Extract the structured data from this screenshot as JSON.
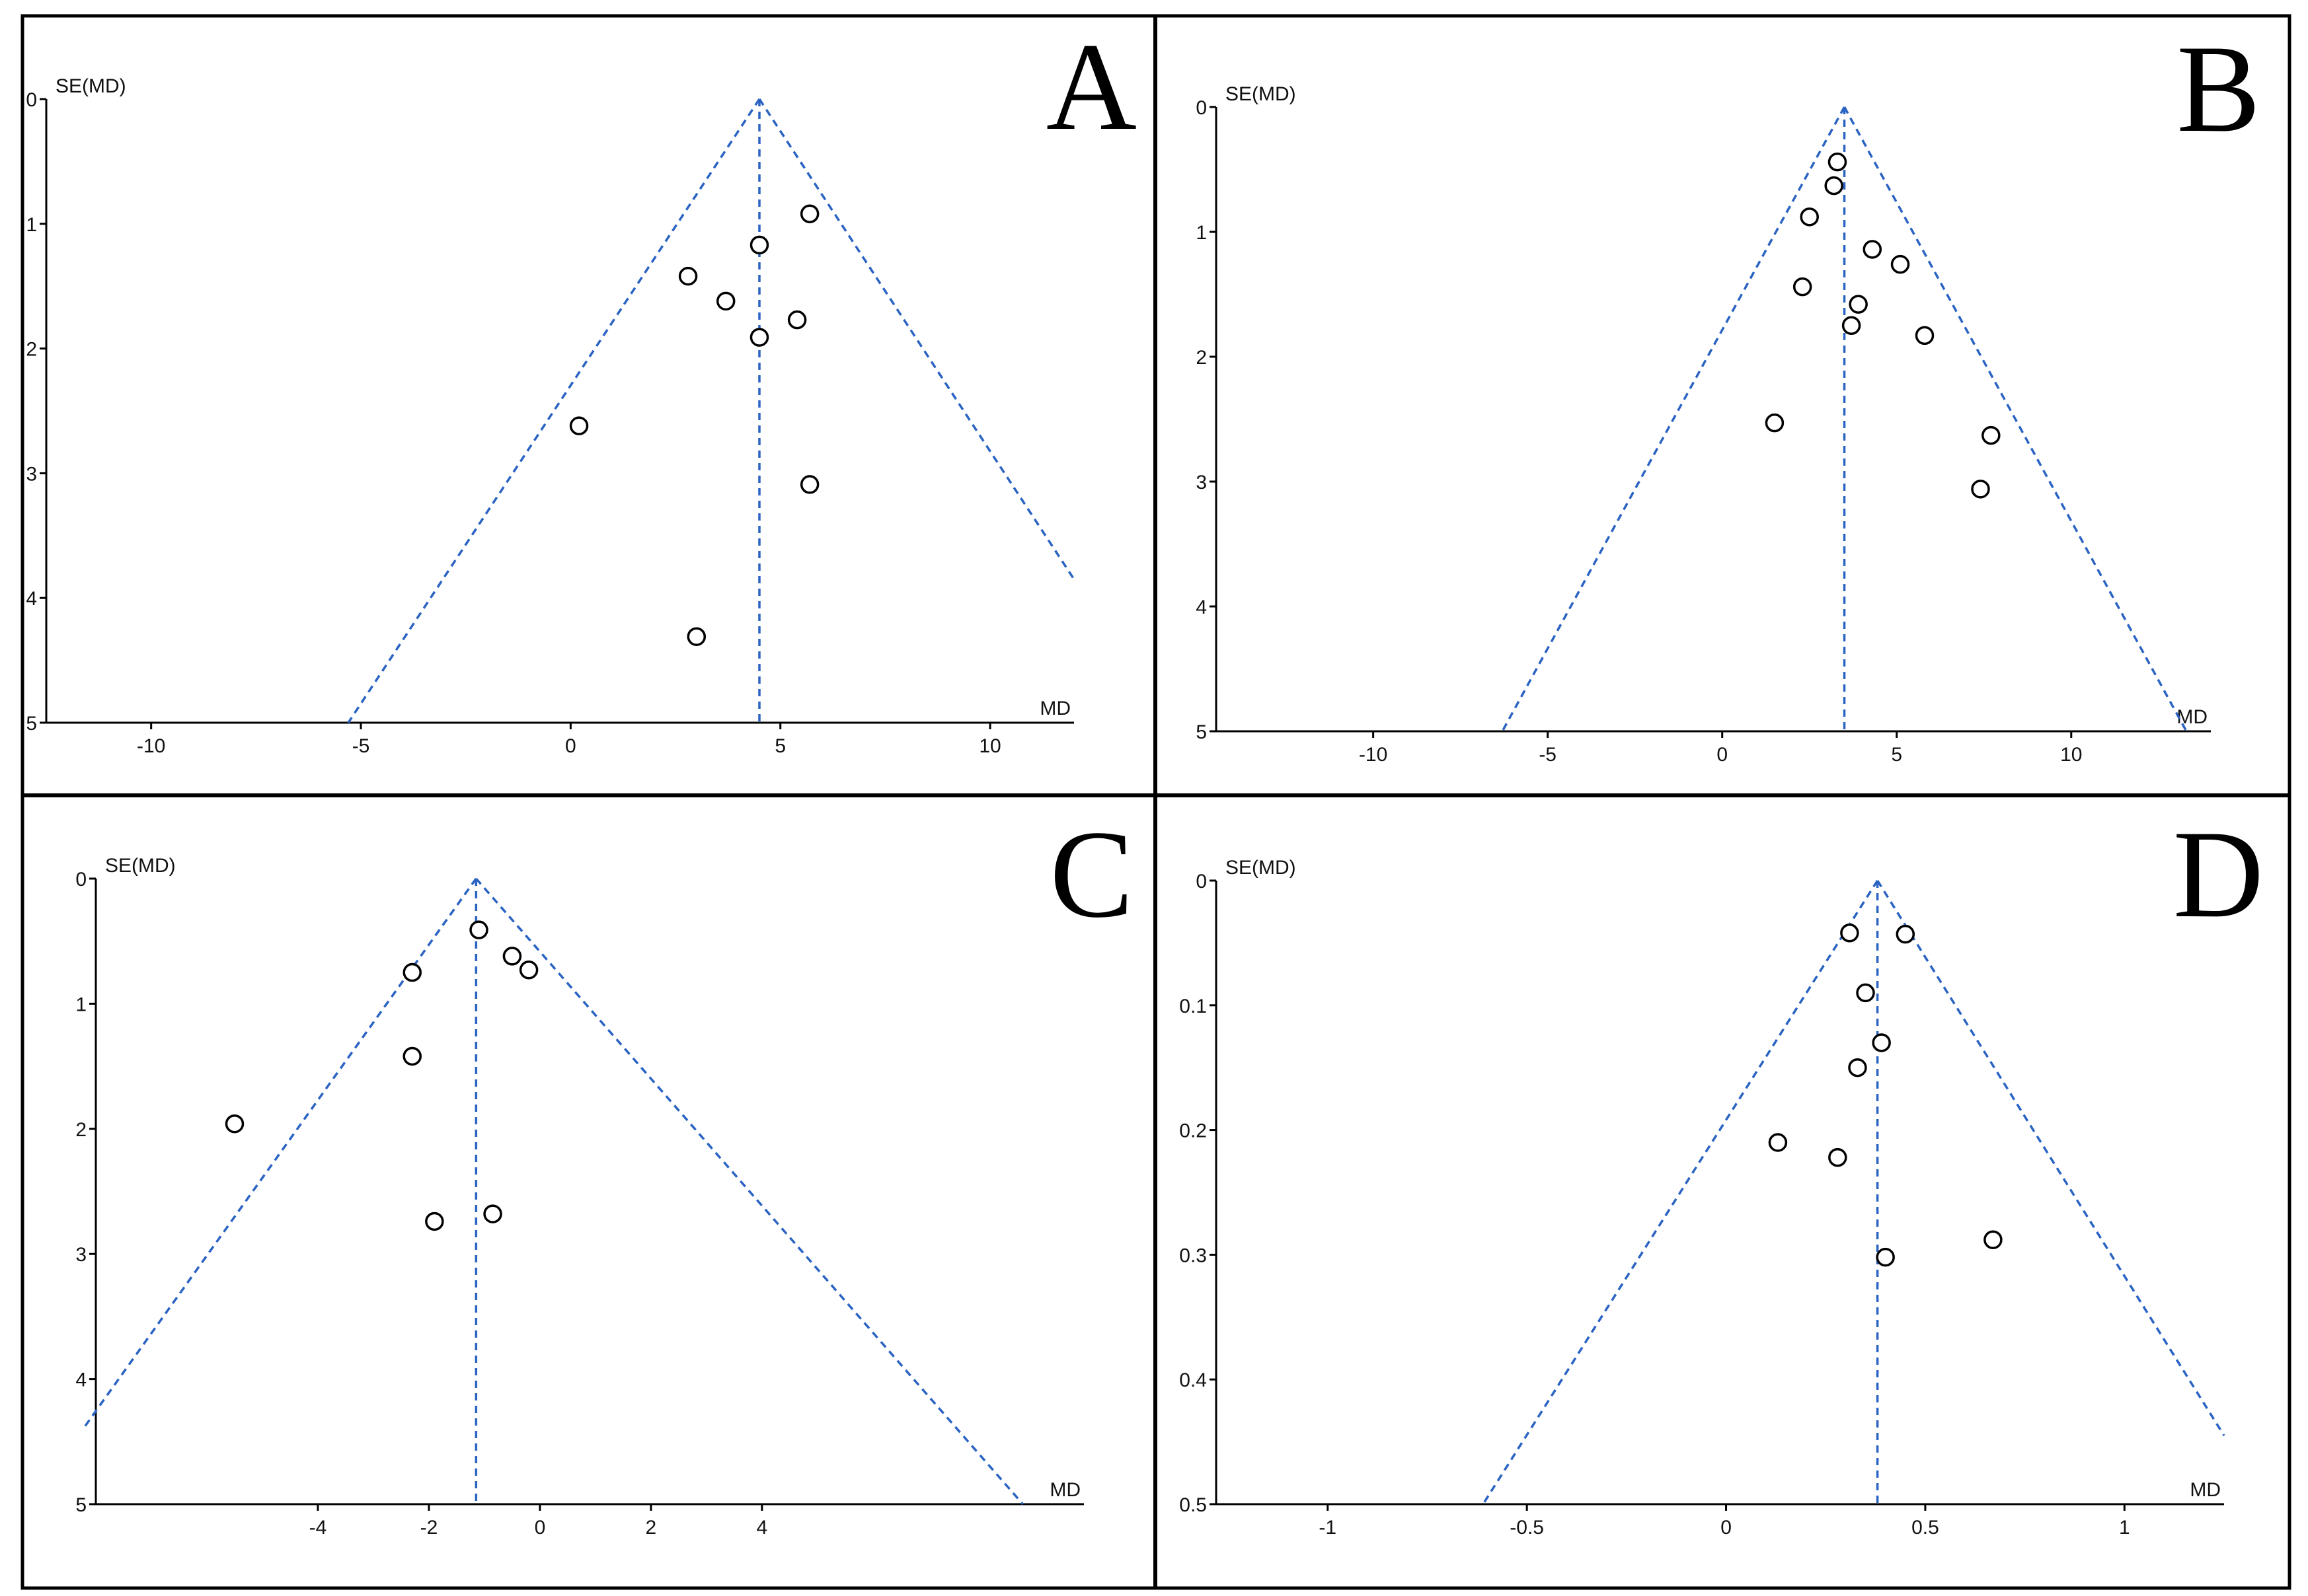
{
  "chart_data": [
    {
      "panel": "A",
      "type": "scatter",
      "xlabel": "MD",
      "ylabel": "SE(MD)",
      "xlim": [
        -12.5,
        12
      ],
      "ylim": [
        0,
        5
      ],
      "y_reversed": true,
      "xticks": [
        -10,
        -5,
        0,
        5,
        10
      ],
      "xtick_labels": [
        "-10",
        "-5",
        "0",
        "5",
        "10"
      ],
      "yticks": [
        0,
        1,
        2,
        3,
        4,
        5
      ],
      "ytick_labels": [
        "0",
        "1",
        "2",
        "3",
        "4",
        "5"
      ],
      "pooled_estimate": 4.5,
      "funnel_edges": [
        {
          "x": -5.3,
          "y": 5
        },
        {
          "x": 12,
          "y": 3.85
        }
      ],
      "points": [
        {
          "x": 5.7,
          "y": 0.92
        },
        {
          "x": 4.5,
          "y": 1.17
        },
        {
          "x": 2.8,
          "y": 1.42
        },
        {
          "x": 3.7,
          "y": 1.62
        },
        {
          "x": 5.4,
          "y": 1.77
        },
        {
          "x": 4.5,
          "y": 1.91
        },
        {
          "x": 0.2,
          "y": 2.62
        },
        {
          "x": 5.7,
          "y": 3.09
        },
        {
          "x": 3.0,
          "y": 4.31
        }
      ]
    },
    {
      "panel": "B",
      "type": "scatter",
      "xlabel": "MD",
      "ylabel": "SE(MD)",
      "xlim": [
        -14.5,
        14
      ],
      "ylim": [
        0,
        5
      ],
      "y_reversed": true,
      "xticks": [
        -10,
        -5,
        0,
        5,
        10
      ],
      "xtick_labels": [
        "-10",
        "-5",
        "0",
        "5",
        "10"
      ],
      "yticks": [
        0,
        1,
        2,
        3,
        4,
        5
      ],
      "ytick_labels": [
        "0",
        "1",
        "2",
        "3",
        "4",
        "5"
      ],
      "pooled_estimate": 3.5,
      "funnel_edges": [
        {
          "x": -6.3,
          "y": 5
        },
        {
          "x": 13.3,
          "y": 5
        }
      ],
      "points": [
        {
          "x": 3.3,
          "y": 0.44
        },
        {
          "x": 3.2,
          "y": 0.63
        },
        {
          "x": 2.5,
          "y": 0.88
        },
        {
          "x": 4.3,
          "y": 1.14
        },
        {
          "x": 5.1,
          "y": 1.26
        },
        {
          "x": 2.3,
          "y": 1.44
        },
        {
          "x": 3.9,
          "y": 1.58
        },
        {
          "x": 3.7,
          "y": 1.75
        },
        {
          "x": 5.8,
          "y": 1.83
        },
        {
          "x": 1.5,
          "y": 2.53
        },
        {
          "x": 7.7,
          "y": 2.63
        },
        {
          "x": 7.4,
          "y": 3.06
        }
      ]
    },
    {
      "panel": "C",
      "type": "scatter",
      "xlabel": "MD",
      "ylabel": "SE(MD)",
      "xlim": [
        -8,
        9.8
      ],
      "ylim": [
        0,
        5
      ],
      "y_reversed": true,
      "xticks": [
        -4,
        -2,
        0,
        2,
        4
      ],
      "xtick_labels": [
        "-4",
        "-2",
        "0",
        "2",
        "4"
      ],
      "yticks": [
        0,
        1,
        2,
        3,
        4,
        5
      ],
      "ytick_labels": [
        "0",
        "1",
        "2",
        "3",
        "4",
        "5"
      ],
      "pooled_estimate": -1.15,
      "funnel_edges": [
        {
          "x": -8.2,
          "y": 4.38
        },
        {
          "x": 8.7,
          "y": 5
        }
      ],
      "points": [
        {
          "x": -1.1,
          "y": 0.41
        },
        {
          "x": -0.5,
          "y": 0.62
        },
        {
          "x": -0.2,
          "y": 0.73
        },
        {
          "x": -2.3,
          "y": 0.75
        },
        {
          "x": -2.3,
          "y": 1.42
        },
        {
          "x": -5.5,
          "y": 1.96
        },
        {
          "x": -0.85,
          "y": 2.68
        },
        {
          "x": -1.9,
          "y": 2.74
        }
      ]
    },
    {
      "panel": "D",
      "type": "scatter",
      "xlabel": "MD",
      "ylabel": "SE(MD)",
      "xlim": [
        -1.28,
        1.25
      ],
      "ylim": [
        0,
        0.5
      ],
      "y_reversed": true,
      "xticks": [
        -1,
        -0.5,
        0,
        0.5,
        1
      ],
      "xtick_labels": [
        "-1",
        "-0.5",
        "0",
        "0.5",
        "1"
      ],
      "yticks": [
        0,
        0.1,
        0.2,
        0.3,
        0.4,
        0.5
      ],
      "ytick_labels": [
        "0",
        "0.1",
        "0.2",
        "0.3",
        "0.4",
        "0.5"
      ],
      "pooled_estimate": 0.38,
      "funnel_edges": [
        {
          "x": -0.61,
          "y": 0.5
        },
        {
          "x": 1.25,
          "y": 0.445
        }
      ],
      "points": [
        {
          "x": 0.31,
          "y": 0.042
        },
        {
          "x": 0.45,
          "y": 0.043
        },
        {
          "x": 0.35,
          "y": 0.09
        },
        {
          "x": 0.39,
          "y": 0.13
        },
        {
          "x": 0.33,
          "y": 0.15
        },
        {
          "x": 0.13,
          "y": 0.21
        },
        {
          "x": 0.28,
          "y": 0.222
        },
        {
          "x": 0.67,
          "y": 0.288
        },
        {
          "x": 0.4,
          "y": 0.302
        }
      ]
    }
  ]
}
